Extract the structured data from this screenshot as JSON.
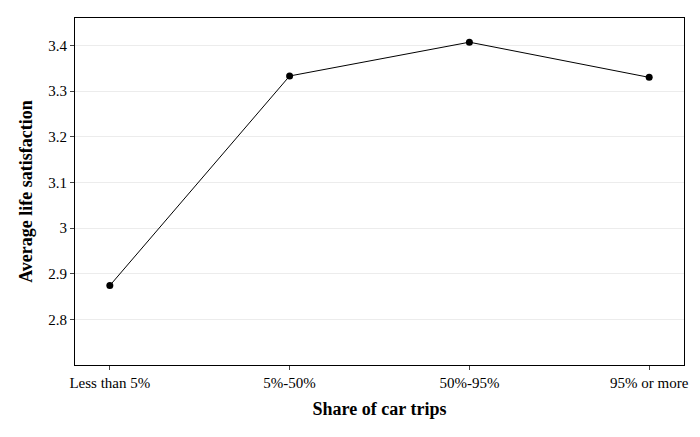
{
  "chart_data": {
    "type": "line",
    "x_label": "Share of car trips",
    "y_label": "Average life satisfaction",
    "categories": [
      "Less than 5%",
      "5%-50%",
      "50%-95%",
      "95% or more"
    ],
    "values": [
      2.874,
      3.333,
      3.407,
      3.33
    ],
    "color": "#000000",
    "marker": "circle",
    "ylim": [
      2.7,
      3.46
    ],
    "yticks": [
      2.8,
      2.9,
      3,
      3.1,
      3.2,
      3.3,
      3.4
    ],
    "grid": true
  }
}
